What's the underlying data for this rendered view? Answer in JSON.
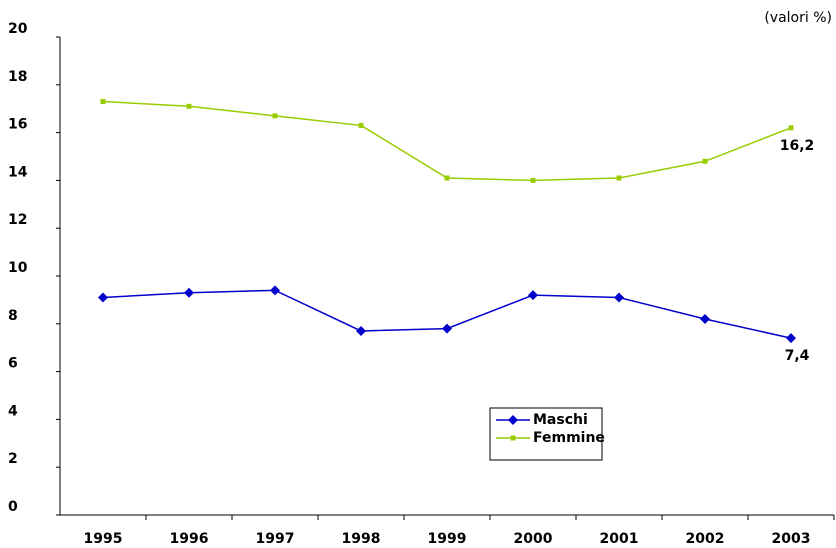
{
  "chart_data": {
    "type": "line",
    "unit_label": "(valori %)",
    "categories": [
      "1995",
      "1996",
      "1997",
      "1998",
      "1999",
      "2000",
      "2001",
      "2002",
      "2003"
    ],
    "series": [
      {
        "name": "Maschi",
        "color": "#0000cc",
        "marker": "diamond",
        "values": [
          9.1,
          9.3,
          9.4,
          7.7,
          7.8,
          9.2,
          9.1,
          8.2,
          7.4
        ],
        "value_labels": [
          null,
          null,
          null,
          null,
          null,
          null,
          null,
          null,
          "7,4"
        ]
      },
      {
        "name": "Femmine",
        "color": "#99cc00",
        "marker": "square",
        "values": [
          17.3,
          17.1,
          16.7,
          16.3,
          14.1,
          14.0,
          14.1,
          14.8,
          16.2
        ],
        "value_labels": [
          null,
          null,
          null,
          null,
          null,
          null,
          null,
          null,
          "16,2"
        ]
      }
    ],
    "ylim": [
      0,
      20
    ],
    "yticks": [
      0,
      2,
      4,
      6,
      8,
      10,
      12,
      14,
      16,
      18,
      20
    ],
    "grid": false
  }
}
